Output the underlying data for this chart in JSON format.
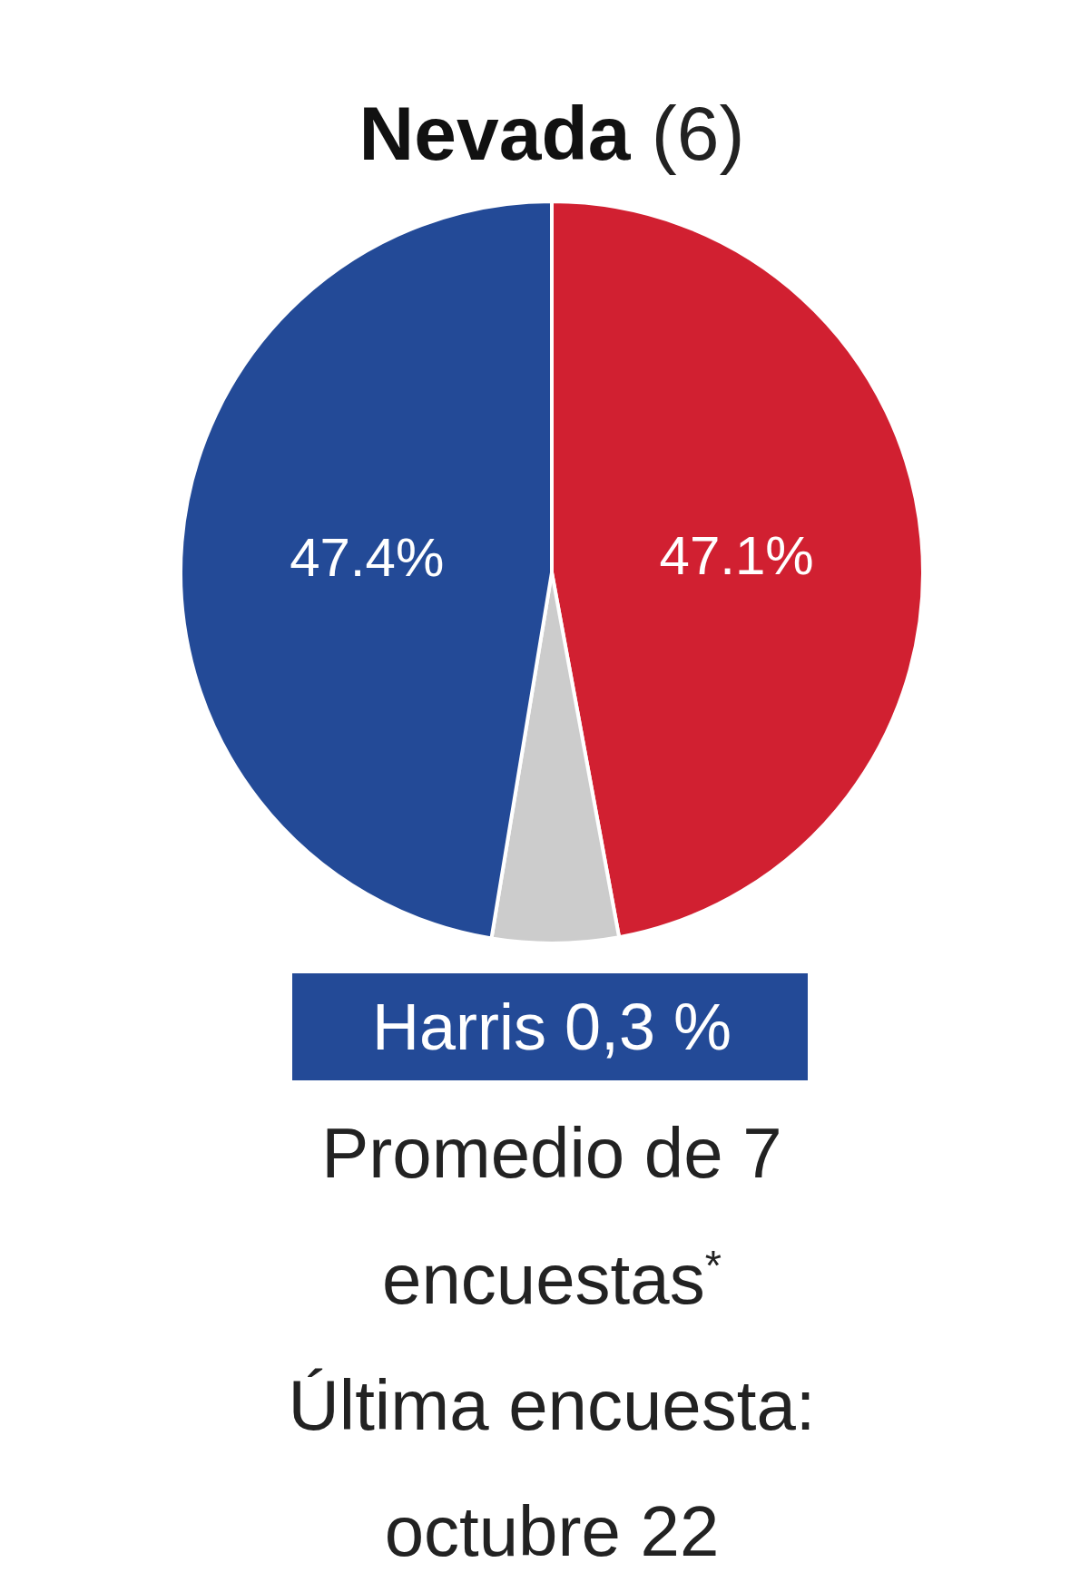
{
  "chart_data": {
    "type": "pie",
    "title": "Nevada",
    "subtitle": "(6)",
    "categories": [
      null,
      null,
      null
    ],
    "values": [
      47.1,
      5.5,
      47.4
    ],
    "colors": [
      "#d12031",
      "#cccccc",
      "#234a97"
    ],
    "value_labels": [
      "47.1%",
      null,
      "47.4%"
    ],
    "annotations": [
      "Harris 0,3 %",
      "Promedio de 7 encuestas$^{*}$",
      "Última encuesta: octubre 22"
    ]
  }
}
